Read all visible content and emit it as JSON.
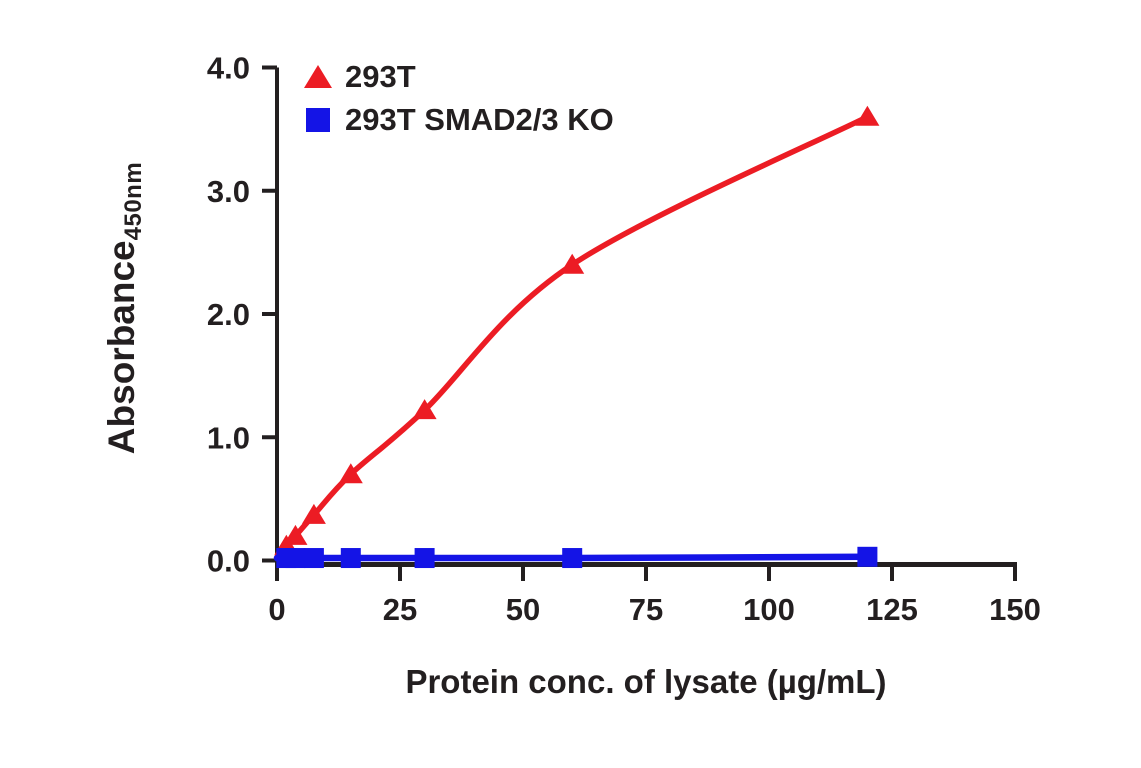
{
  "chart_data": {
    "type": "line",
    "title": "",
    "xlabel": "Protein conc. of lysate (µg/mL)",
    "ylabel": "Absorbance",
    "ylabel_subscript": "450nm",
    "xlim": [
      0,
      150
    ],
    "ylim": [
      0,
      4
    ],
    "x_ticks": [
      0,
      25,
      50,
      75,
      100,
      125,
      150
    ],
    "y_ticks": [
      0.0,
      1.0,
      2.0,
      3.0,
      4.0
    ],
    "grid": false,
    "legend_position": "top-left",
    "axis_color": "#231f20",
    "background_color": "#ffffff",
    "series": [
      {
        "name": "293T",
        "marker": "triangle",
        "color": "#ec1c24",
        "curve_start": [
          0,
          0.03
        ],
        "x": [
          1.9,
          3.75,
          7.5,
          15,
          30,
          60,
          120
        ],
        "y": [
          0.12,
          0.2,
          0.37,
          0.7,
          1.22,
          2.4,
          3.6
        ]
      },
      {
        "name": "293T SMAD2/3 KO",
        "marker": "square",
        "color": "#1414e6",
        "curve_start": [
          0,
          0.02
        ],
        "x": [
          1.9,
          3.75,
          7.5,
          15,
          30,
          60,
          120
        ],
        "y": [
          0.02,
          0.02,
          0.02,
          0.02,
          0.02,
          0.02,
          0.03
        ]
      }
    ]
  }
}
